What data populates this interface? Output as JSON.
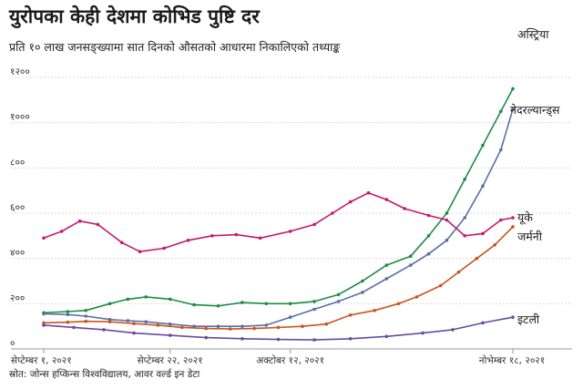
{
  "title": "युरोपका केही देशमा कोभिड पुष्टि दर",
  "subtitle": "प्रति १० लाख जनसङ्ख्यामा सात दिनको औसतको आधारमा निकालिएको तथ्याङ्क",
  "source": "स्रोत: जोन्स हप्किन्स विश्वविद्यालय, आवर वर्ल्ड इन डेटा",
  "chart_data": {
    "type": "line",
    "ylim": [
      0,
      1200
    ],
    "grid": true,
    "y_ticks": [
      {
        "value": 0,
        "label": "०"
      },
      {
        "value": 200,
        "label": "२००"
      },
      {
        "value": 400,
        "label": "४००"
      },
      {
        "value": 600,
        "label": "६००"
      },
      {
        "value": 800,
        "label": "८००"
      },
      {
        "value": 1000,
        "label": "१०००"
      },
      {
        "value": 1200,
        "label": "१२००"
      }
    ],
    "x_ticks": [
      {
        "date": "2021-09-01",
        "label": "सेप्टेम्बर १, २०२१"
      },
      {
        "date": "2021-09-22",
        "label": "सेप्टेम्बर २२, २०२१"
      },
      {
        "date": "2021-10-12",
        "label": "अक्टोबर १२, २०२१"
      },
      {
        "date": "2021-11-18",
        "label": "नोभेम्बर १८, २०२१"
      }
    ],
    "x_range": [
      "2021-09-01",
      "2021-11-18"
    ],
    "series": [
      {
        "name": "अस्ट्रिया",
        "color": "#1e8c45",
        "points": [
          [
            "2021-09-01",
            160
          ],
          [
            "2021-09-05",
            165
          ],
          [
            "2021-09-08",
            170
          ],
          [
            "2021-09-12",
            200
          ],
          [
            "2021-09-15",
            220
          ],
          [
            "2021-09-18",
            230
          ],
          [
            "2021-09-22",
            220
          ],
          [
            "2021-09-26",
            195
          ],
          [
            "2021-09-30",
            190
          ],
          [
            "2021-10-04",
            205
          ],
          [
            "2021-10-08",
            200
          ],
          [
            "2021-10-12",
            200
          ],
          [
            "2021-10-16",
            210
          ],
          [
            "2021-10-20",
            240
          ],
          [
            "2021-10-24",
            300
          ],
          [
            "2021-10-28",
            370
          ],
          [
            "2021-11-01",
            410
          ],
          [
            "2021-11-04",
            500
          ],
          [
            "2021-11-07",
            600
          ],
          [
            "2021-11-10",
            750
          ],
          [
            "2021-11-13",
            900
          ],
          [
            "2021-11-16",
            1050
          ],
          [
            "2021-11-18",
            1150
          ]
        ]
      },
      {
        "name": "नेदरल्यान्ड्स",
        "color": "#5a6ea8",
        "points": [
          [
            "2021-09-01",
            155
          ],
          [
            "2021-09-05",
            152
          ],
          [
            "2021-09-08",
            145
          ],
          [
            "2021-09-12",
            130
          ],
          [
            "2021-09-15",
            125
          ],
          [
            "2021-09-18",
            120
          ],
          [
            "2021-09-22",
            110
          ],
          [
            "2021-09-26",
            100
          ],
          [
            "2021-09-30",
            100
          ],
          [
            "2021-10-04",
            100
          ],
          [
            "2021-10-08",
            105
          ],
          [
            "2021-10-12",
            140
          ],
          [
            "2021-10-16",
            175
          ],
          [
            "2021-10-20",
            210
          ],
          [
            "2021-10-24",
            250
          ],
          [
            "2021-10-28",
            310
          ],
          [
            "2021-11-01",
            370
          ],
          [
            "2021-11-04",
            420
          ],
          [
            "2021-11-07",
            480
          ],
          [
            "2021-11-10",
            580
          ],
          [
            "2021-11-13",
            720
          ],
          [
            "2021-11-16",
            880
          ],
          [
            "2021-11-18",
            1060
          ]
        ]
      },
      {
        "name": "यूके",
        "color": "#c41873",
        "points": [
          [
            "2021-09-01",
            490
          ],
          [
            "2021-09-04",
            520
          ],
          [
            "2021-09-07",
            565
          ],
          [
            "2021-09-10",
            550
          ],
          [
            "2021-09-14",
            470
          ],
          [
            "2021-09-17",
            430
          ],
          [
            "2021-09-21",
            445
          ],
          [
            "2021-09-25",
            480
          ],
          [
            "2021-09-29",
            500
          ],
          [
            "2021-10-03",
            505
          ],
          [
            "2021-10-07",
            490
          ],
          [
            "2021-10-12",
            520
          ],
          [
            "2021-10-16",
            550
          ],
          [
            "2021-10-19",
            600
          ],
          [
            "2021-10-22",
            650
          ],
          [
            "2021-10-25",
            690
          ],
          [
            "2021-10-28",
            660
          ],
          [
            "2021-10-31",
            620
          ],
          [
            "2021-11-04",
            590
          ],
          [
            "2021-11-07",
            570
          ],
          [
            "2021-11-10",
            500
          ],
          [
            "2021-11-13",
            510
          ],
          [
            "2021-11-16",
            570
          ],
          [
            "2021-11-18",
            580
          ]
        ]
      },
      {
        "name": "जर्मनी",
        "color": "#c9551e",
        "points": [
          [
            "2021-09-01",
            115
          ],
          [
            "2021-09-05",
            118
          ],
          [
            "2021-09-08",
            122
          ],
          [
            "2021-09-12",
            120
          ],
          [
            "2021-09-16",
            112
          ],
          [
            "2021-09-20",
            105
          ],
          [
            "2021-09-24",
            95
          ],
          [
            "2021-09-28",
            90
          ],
          [
            "2021-10-02",
            88
          ],
          [
            "2021-10-06",
            90
          ],
          [
            "2021-10-10",
            95
          ],
          [
            "2021-10-14",
            100
          ],
          [
            "2021-10-18",
            110
          ],
          [
            "2021-10-22",
            150
          ],
          [
            "2021-10-26",
            170
          ],
          [
            "2021-10-30",
            200
          ],
          [
            "2021-11-02",
            230
          ],
          [
            "2021-11-06",
            280
          ],
          [
            "2021-11-09",
            340
          ],
          [
            "2021-11-12",
            400
          ],
          [
            "2021-11-15",
            460
          ],
          [
            "2021-11-18",
            540
          ]
        ]
      },
      {
        "name": "इटली",
        "color": "#6b4aa0",
        "points": [
          [
            "2021-09-01",
            105
          ],
          [
            "2021-09-06",
            95
          ],
          [
            "2021-09-11",
            85
          ],
          [
            "2021-09-16",
            70
          ],
          [
            "2021-09-22",
            60
          ],
          [
            "2021-09-28",
            50
          ],
          [
            "2021-10-04",
            45
          ],
          [
            "2021-10-10",
            42
          ],
          [
            "2021-10-16",
            40
          ],
          [
            "2021-10-22",
            45
          ],
          [
            "2021-10-28",
            55
          ],
          [
            "2021-11-03",
            70
          ],
          [
            "2021-11-08",
            85
          ],
          [
            "2021-11-13",
            115
          ],
          [
            "2021-11-18",
            140
          ]
        ]
      }
    ]
  }
}
